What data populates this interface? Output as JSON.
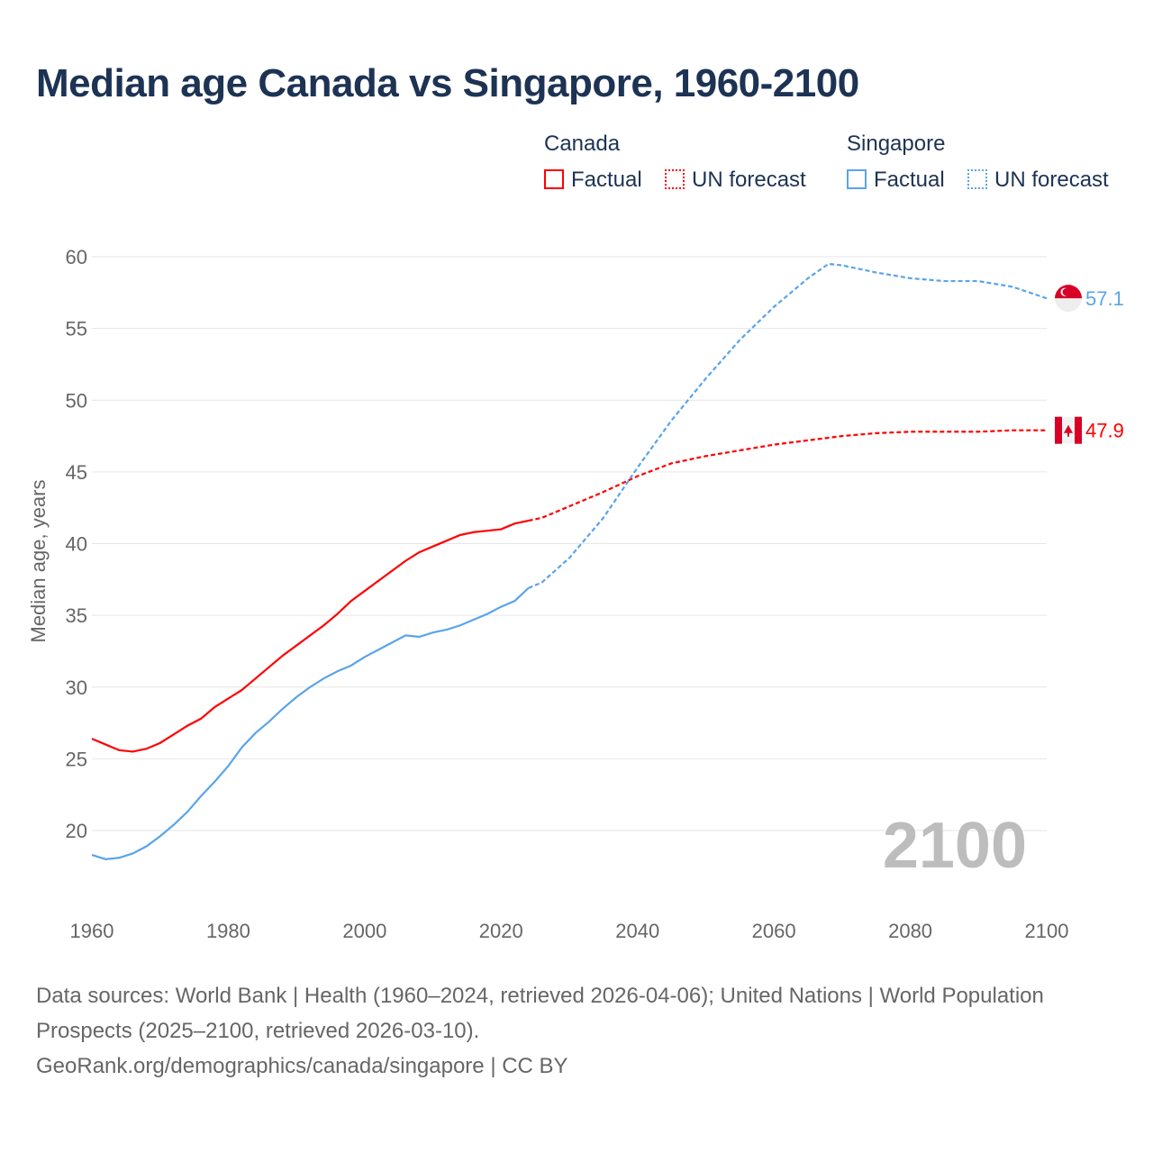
{
  "title": "Median age Canada vs Singapore, 1960-2100",
  "legend": {
    "groups": [
      {
        "name": "Canada",
        "items": [
          "Factual",
          "UN forecast"
        ],
        "color": "#ff0000"
      },
      {
        "name": "Singapore",
        "items": [
          "Factual",
          "UN forecast"
        ],
        "color": "#5aa4ea"
      }
    ]
  },
  "footer": {
    "line1": "Data sources: World Bank | Health (1960–2024, retrieved 2026-04-06); United Nations | World Population Prospects (2025–2100, retrieved 2026-03-10).",
    "line2": "GeoRank.org/demographics/canada/singapore | CC BY"
  },
  "chart_data": {
    "type": "line",
    "title": "Median age Canada vs Singapore, 1960-2100",
    "xlabel": "",
    "ylabel": "Median age, years",
    "xlim": [
      1960,
      2100
    ],
    "ylim": [
      15,
      61
    ],
    "xticks": [
      1960,
      1980,
      2000,
      2020,
      2040,
      2060,
      2080,
      2100
    ],
    "yticks": [
      20,
      25,
      30,
      35,
      40,
      45,
      50,
      55,
      60
    ],
    "grid": true,
    "year_watermark": "2100",
    "forecast_start": 2024,
    "series": [
      {
        "name": "Canada",
        "color": "#ff0000",
        "end_label": "47.9",
        "x": [
          1960,
          1962,
          1964,
          1966,
          1968,
          1970,
          1972,
          1974,
          1976,
          1978,
          1980,
          1982,
          1984,
          1986,
          1988,
          1990,
          1992,
          1994,
          1996,
          1998,
          2000,
          2002,
          2004,
          2006,
          2008,
          2010,
          2012,
          2014,
          2016,
          2018,
          2020,
          2022,
          2024,
          2026,
          2030,
          2035,
          2040,
          2045,
          2050,
          2055,
          2060,
          2065,
          2070,
          2075,
          2080,
          2085,
          2090,
          2095,
          2100
        ],
        "y": [
          26.4,
          26.0,
          25.6,
          25.5,
          25.7,
          26.1,
          26.7,
          27.3,
          27.8,
          28.6,
          29.2,
          29.8,
          30.6,
          31.4,
          32.2,
          32.9,
          33.6,
          34.3,
          35.1,
          36.0,
          36.7,
          37.4,
          38.1,
          38.8,
          39.4,
          39.8,
          40.2,
          40.6,
          40.8,
          40.9,
          41.0,
          41.4,
          41.6,
          41.8,
          42.6,
          43.6,
          44.7,
          45.6,
          46.1,
          46.5,
          46.9,
          47.2,
          47.5,
          47.7,
          47.8,
          47.8,
          47.8,
          47.9,
          47.9
        ]
      },
      {
        "name": "Singapore",
        "color": "#5aa4ea",
        "end_label": "57.1",
        "x": [
          1960,
          1962,
          1964,
          1966,
          1968,
          1970,
          1972,
          1974,
          1976,
          1978,
          1980,
          1982,
          1984,
          1986,
          1988,
          1990,
          1992,
          1994,
          1996,
          1998,
          2000,
          2002,
          2004,
          2006,
          2008,
          2010,
          2012,
          2014,
          2016,
          2018,
          2020,
          2022,
          2024,
          2026,
          2030,
          2035,
          2040,
          2045,
          2050,
          2055,
          2060,
          2065,
          2068,
          2070,
          2075,
          2080,
          2085,
          2090,
          2095,
          2100
        ],
        "y": [
          18.3,
          18.0,
          18.1,
          18.4,
          18.9,
          19.6,
          20.4,
          21.3,
          22.4,
          23.4,
          24.5,
          25.8,
          26.8,
          27.6,
          28.5,
          29.3,
          30.0,
          30.6,
          31.1,
          31.5,
          32.1,
          32.6,
          33.1,
          33.6,
          33.5,
          33.8,
          34.0,
          34.3,
          34.7,
          35.1,
          35.6,
          36.0,
          36.9,
          37.3,
          39.0,
          41.8,
          45.3,
          48.6,
          51.5,
          54.2,
          56.5,
          58.5,
          59.5,
          59.4,
          58.9,
          58.5,
          58.3,
          58.3,
          57.9,
          57.1
        ]
      }
    ]
  }
}
